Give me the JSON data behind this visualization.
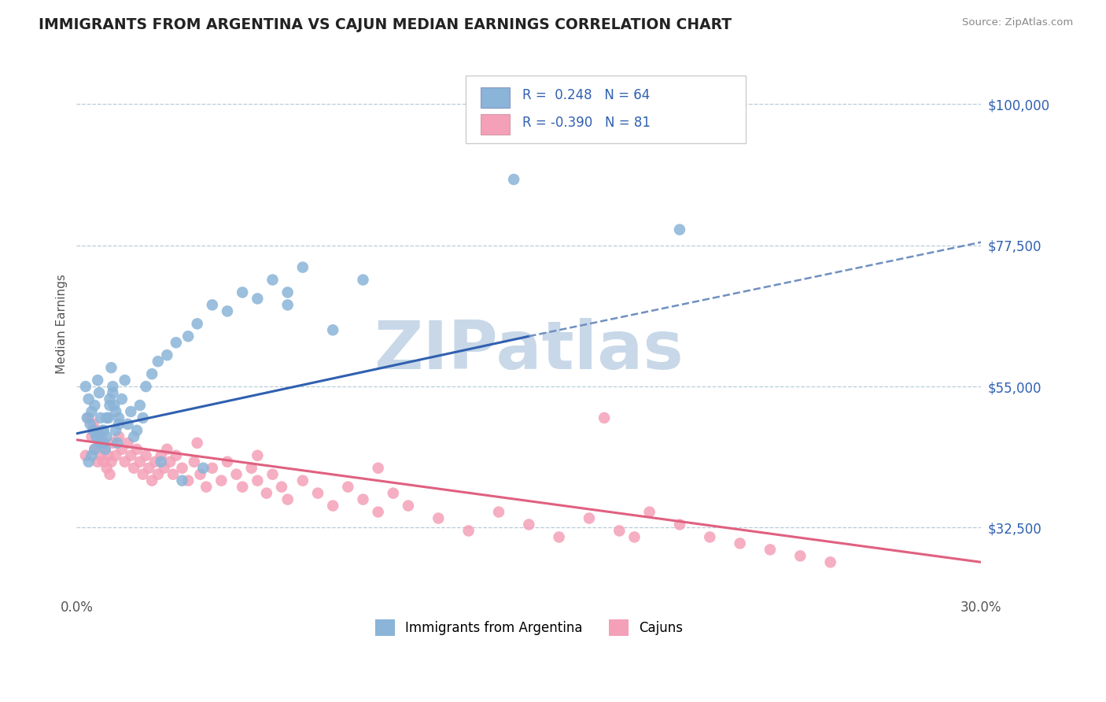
{
  "title": "IMMIGRANTS FROM ARGENTINA VS CAJUN MEDIAN EARNINGS CORRELATION CHART",
  "source": "Source: ZipAtlas.com",
  "ylabel": "Median Earnings",
  "xlim": [
    0.0,
    30.0
  ],
  "ylim": [
    22000,
    108000
  ],
  "yticks": [
    32500,
    55000,
    77500,
    100000
  ],
  "ytick_labels": [
    "$32,500",
    "$55,000",
    "$77,500",
    "$100,000"
  ],
  "xtick_labels": [
    "0.0%",
    "30.0%"
  ],
  "series1_color": "#8ab4d8",
  "series2_color": "#f4a0b8",
  "trendline1_color": "#3060b0",
  "trendline2_color": "#e06080",
  "dashed_line_color": "#7090c0",
  "R1": 0.248,
  "N1": 64,
  "R2": -0.39,
  "N2": 81,
  "watermark": "ZIPatlas",
  "watermark_color": "#c8d8e8",
  "background_color": "#ffffff",
  "trendline1_x0": 0.0,
  "trendline1_y0": 47500,
  "trendline1_x1": 15.0,
  "trendline1_y1": 63000,
  "dashed_x0": 15.0,
  "dashed_y0": 63000,
  "dashed_x1": 30.0,
  "dashed_y1": 78000,
  "trendline2_x0": 0.0,
  "trendline2_y0": 46500,
  "trendline2_x1": 30.0,
  "trendline2_y1": 27000,
  "scatter1_x": [
    0.3,
    0.35,
    0.4,
    0.45,
    0.5,
    0.55,
    0.6,
    0.65,
    0.7,
    0.75,
    0.8,
    0.85,
    0.9,
    0.95,
    1.0,
    1.05,
    1.1,
    1.15,
    1.2,
    1.25,
    1.3,
    1.35,
    1.4,
    1.5,
    1.6,
    1.7,
    1.8,
    1.9,
    2.0,
    2.1,
    2.2,
    2.3,
    2.5,
    2.7,
    3.0,
    3.3,
    3.7,
    4.0,
    4.5,
    5.0,
    5.5,
    6.0,
    6.5,
    7.0,
    7.5,
    8.5,
    2.8,
    3.5,
    4.2,
    0.4,
    0.5,
    0.6,
    0.7,
    0.8,
    0.9,
    1.0,
    1.1,
    1.2,
    1.3,
    1.4,
    7.0,
    9.5,
    14.5,
    20.0
  ],
  "scatter1_y": [
    55000,
    50000,
    53000,
    49000,
    51000,
    48000,
    52000,
    47000,
    56000,
    54000,
    50000,
    48000,
    46000,
    45000,
    47000,
    50000,
    53000,
    58000,
    55000,
    52000,
    48000,
    46000,
    50000,
    53000,
    56000,
    49000,
    51000,
    47000,
    48000,
    52000,
    50000,
    55000,
    57000,
    59000,
    60000,
    62000,
    63000,
    65000,
    68000,
    67000,
    70000,
    69000,
    72000,
    70000,
    74000,
    64000,
    43000,
    40000,
    42000,
    43000,
    44000,
    45000,
    47000,
    46000,
    48000,
    50000,
    52000,
    54000,
    51000,
    49000,
    68000,
    72000,
    88000,
    80000
  ],
  "scatter2_x": [
    0.3,
    0.4,
    0.5,
    0.55,
    0.6,
    0.65,
    0.7,
    0.75,
    0.8,
    0.85,
    0.9,
    0.95,
    1.0,
    1.05,
    1.1,
    1.15,
    1.2,
    1.3,
    1.4,
    1.5,
    1.6,
    1.7,
    1.8,
    1.9,
    2.0,
    2.1,
    2.2,
    2.3,
    2.4,
    2.5,
    2.6,
    2.7,
    2.8,
    2.9,
    3.0,
    3.1,
    3.2,
    3.3,
    3.5,
    3.7,
    3.9,
    4.1,
    4.3,
    4.5,
    4.8,
    5.0,
    5.3,
    5.5,
    5.8,
    6.0,
    6.3,
    6.5,
    6.8,
    7.0,
    7.5,
    8.0,
    8.5,
    9.0,
    9.5,
    10.0,
    10.5,
    11.0,
    12.0,
    13.0,
    14.0,
    15.0,
    16.0,
    17.0,
    17.5,
    18.0,
    18.5,
    19.0,
    20.0,
    21.0,
    22.0,
    23.0,
    24.0,
    25.0,
    10.0,
    6.0,
    4.0
  ],
  "scatter2_y": [
    44000,
    50000,
    47000,
    49000,
    45000,
    48000,
    43000,
    46000,
    44000,
    47000,
    43000,
    45000,
    42000,
    44000,
    41000,
    43000,
    46000,
    44000,
    47000,
    45000,
    43000,
    46000,
    44000,
    42000,
    45000,
    43000,
    41000,
    44000,
    42000,
    40000,
    43000,
    41000,
    44000,
    42000,
    45000,
    43000,
    41000,
    44000,
    42000,
    40000,
    43000,
    41000,
    39000,
    42000,
    40000,
    43000,
    41000,
    39000,
    42000,
    40000,
    38000,
    41000,
    39000,
    37000,
    40000,
    38000,
    36000,
    39000,
    37000,
    35000,
    38000,
    36000,
    34000,
    32000,
    35000,
    33000,
    31000,
    34000,
    50000,
    32000,
    31000,
    35000,
    33000,
    31000,
    30000,
    29000,
    28000,
    27000,
    42000,
    44000,
    46000
  ]
}
